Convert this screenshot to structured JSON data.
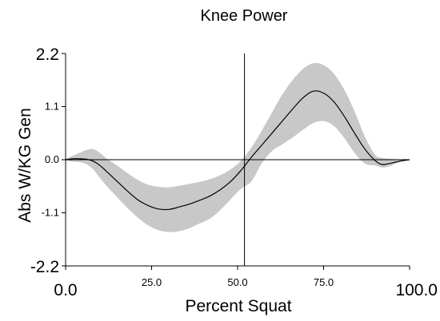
{
  "chart_data": {
    "type": "area",
    "title": "Knee Power",
    "xlabel": "Percent Squat",
    "ylabel": "Abs W/KG Gen",
    "xlim": [
      0,
      100
    ],
    "ylim": [
      -2.2,
      2.2
    ],
    "x_ticks": [
      {
        "value": 0,
        "label": "0.0"
      },
      {
        "value": 25,
        "label": "25.0"
      },
      {
        "value": 50,
        "label": "50.0"
      },
      {
        "value": 75,
        "label": "75.0"
      },
      {
        "value": 100,
        "label": "100.0"
      }
    ],
    "y_ticks": [
      {
        "value": 2.2,
        "label": "2.2"
      },
      {
        "value": 1.1,
        "label": "1.1"
      },
      {
        "value": 0,
        "label": "0.0"
      },
      {
        "value": -1.1,
        "label": "-1.1"
      },
      {
        "value": -2.2,
        "label": "-2.2"
      }
    ],
    "vertical_marker_x": 52,
    "mean_color": "#000000",
    "band_color": "#c8c8c8",
    "x": [
      0,
      2,
      4,
      6,
      8,
      10,
      12,
      15,
      18,
      21,
      24,
      27,
      30,
      33,
      36,
      39,
      42,
      45,
      48,
      51,
      54,
      57,
      60,
      63,
      66,
      69,
      72,
      75,
      78,
      81,
      84,
      87,
      90,
      92,
      94,
      96,
      98,
      100
    ],
    "mean": [
      0,
      0.02,
      0.02,
      0.01,
      -0.03,
      -0.12,
      -0.25,
      -0.45,
      -0.65,
      -0.83,
      -0.95,
      -1.02,
      -1.03,
      -0.98,
      -0.92,
      -0.84,
      -0.75,
      -0.62,
      -0.45,
      -0.22,
      0.05,
      0.3,
      0.55,
      0.8,
      1.05,
      1.28,
      1.42,
      1.38,
      1.2,
      0.9,
      0.55,
      0.22,
      -0.02,
      -0.1,
      -0.08,
      -0.05,
      -0.02,
      0
    ],
    "upper": [
      0.02,
      0.08,
      0.14,
      0.2,
      0.22,
      0.14,
      0.02,
      -0.12,
      -0.28,
      -0.42,
      -0.52,
      -0.56,
      -0.57,
      -0.54,
      -0.5,
      -0.46,
      -0.4,
      -0.32,
      -0.2,
      -0.02,
      0.25,
      0.6,
      0.98,
      1.35,
      1.65,
      1.88,
      2.0,
      1.96,
      1.78,
      1.45,
      1.0,
      0.48,
      0.1,
      0.04,
      0.02,
      0.01,
      0.01,
      0.01
    ],
    "lower": [
      -0.02,
      -0.04,
      -0.05,
      -0.09,
      -0.2,
      -0.38,
      -0.55,
      -0.78,
      -1.0,
      -1.2,
      -1.36,
      -1.46,
      -1.5,
      -1.48,
      -1.42,
      -1.32,
      -1.22,
      -1.04,
      -0.82,
      -0.6,
      -0.45,
      -0.08,
      0.18,
      0.32,
      0.46,
      0.62,
      0.76,
      0.8,
      0.7,
      0.45,
      0.14,
      -0.08,
      -0.12,
      -0.16,
      -0.14,
      -0.08,
      -0.03,
      -0.01
    ]
  }
}
